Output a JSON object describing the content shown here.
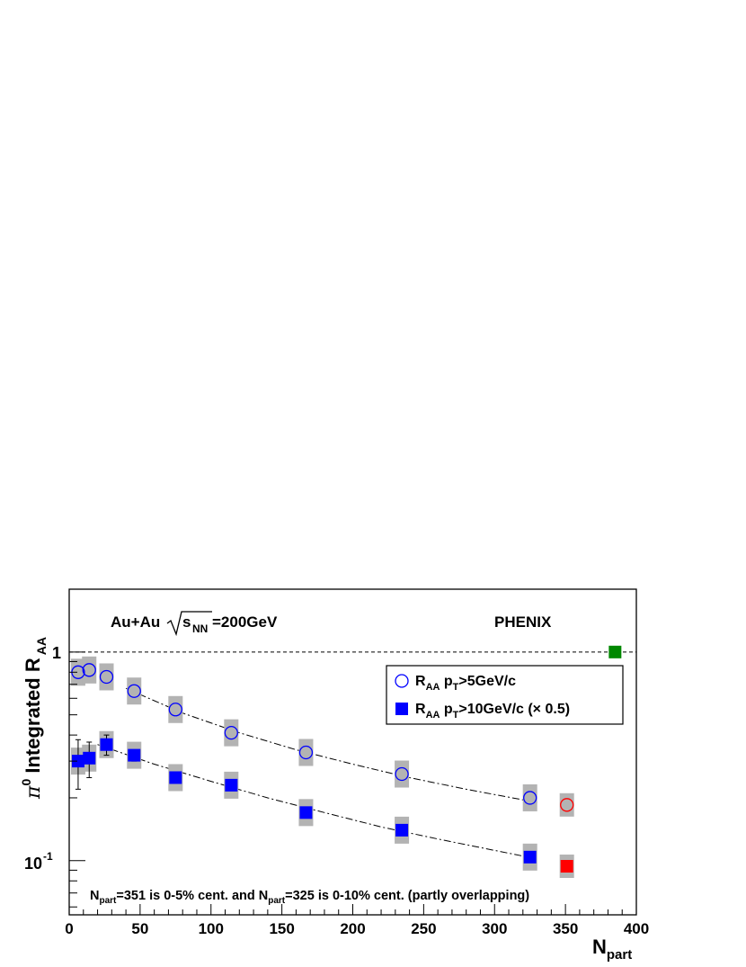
{
  "chart_data": {
    "type": "scatter",
    "title": "",
    "ylabel_parts": {
      "pi": "π",
      "sup": "0",
      "main": " Integrated R",
      "sub": "AA"
    },
    "xlabel_parts": {
      "main": "N",
      "sub": "part"
    },
    "xlim": [
      0,
      400
    ],
    "ylim": [
      0.055,
      2.0
    ],
    "log_y": true,
    "grid": false,
    "legend_position": "top-right",
    "x_ticks": [
      0,
      50,
      100,
      150,
      200,
      250,
      300,
      350,
      400
    ],
    "x_tick_labels": [
      "0",
      "50",
      "100",
      "150",
      "200",
      "250",
      "300",
      "350",
      "400"
    ],
    "y_tick_labels": {
      "one": "1",
      "tenth_base": "10",
      "tenth_exp": "-1"
    },
    "annotation_left": {
      "main": "Au+Au",
      "s": "s",
      "sub": "NN",
      "rest": "=200GeV"
    },
    "annotation_right": "PHENIX",
    "footnote": {
      "p1": "N",
      "sub1": "part",
      "p2": "=351 is 0-5% cent. and N",
      "sub2": "part",
      "p3": "=325 is 0-10% cent. (partly overlapping)"
    },
    "reference_line": {
      "y": 1.0,
      "style": "dashed"
    },
    "series": [
      {
        "legend_main": "R",
        "legend_sub": "AA",
        "legend_mid": " p",
        "legend_sub2": "T",
        "legend_rest": ">5GeV/c",
        "marker": "open-circle",
        "color": "#0000ff",
        "x": [
          6.3,
          14.1,
          26.3,
          45.8,
          75.0,
          114.3,
          167.0,
          234.6,
          325.0
        ],
        "y": [
          0.8,
          0.82,
          0.76,
          0.65,
          0.53,
          0.41,
          0.33,
          0.26,
          0.2
        ]
      },
      {
        "legend_main": "R",
        "legend_sub": "AA",
        "legend_mid": " p",
        "legend_sub2": "T",
        "legend_rest": ">10GeV/c (× 0.5)",
        "marker": "filled-square",
        "color": "#0000ff",
        "x": [
          6.3,
          14.1,
          26.3,
          45.8,
          75.0,
          114.3,
          167.0,
          234.6,
          325.0
        ],
        "y": [
          0.3,
          0.31,
          0.36,
          0.32,
          0.25,
          0.23,
          0.17,
          0.14,
          0.104
        ],
        "stat_err": [
          0.08,
          0.06,
          0.04,
          0.02,
          0.0,
          0.0,
          0.0,
          0.0,
          0.0
        ]
      },
      {
        "marker": "open-circle",
        "color": "#ff0000",
        "x": [
          351
        ],
        "y": [
          0.185
        ]
      },
      {
        "marker": "filled-square",
        "color": "#ff0000",
        "x": [
          351
        ],
        "y": [
          0.094
        ]
      },
      {
        "marker": "filled-square",
        "color": "#008800",
        "x": [
          385
        ],
        "y": [
          1.0
        ]
      }
    ],
    "fit_curves": [
      {
        "style": "dash-dot",
        "x": [
          40,
          80,
          120,
          160,
          200,
          240,
          280,
          330
        ],
        "y": [
          0.67,
          0.51,
          0.41,
          0.34,
          0.29,
          0.25,
          0.22,
          0.19
        ]
      },
      {
        "style": "dash-dot",
        "x": [
          20,
          60,
          100,
          140,
          180,
          220,
          260,
          300,
          330
        ],
        "y": [
          0.36,
          0.29,
          0.24,
          0.2,
          0.17,
          0.145,
          0.127,
          0.112,
          0.102
        ]
      }
    ]
  }
}
